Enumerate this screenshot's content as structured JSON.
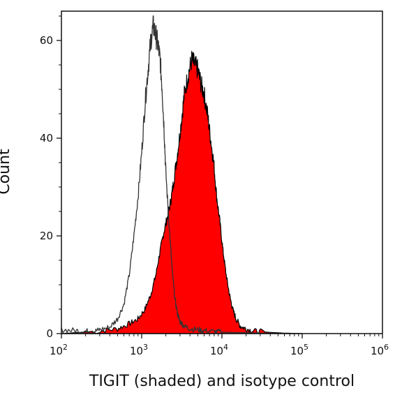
{
  "chart_data": {
    "type": "area",
    "title": "",
    "xlabel": "TIGIT (shaded) and isotype control",
    "ylabel": "Count",
    "x_scale": "log",
    "xlim": [
      100,
      1000000
    ],
    "ylim": [
      0,
      66
    ],
    "x_ticks": [
      {
        "value": 100,
        "base": "10",
        "exp": "2"
      },
      {
        "value": 1000,
        "base": "10",
        "exp": "3"
      },
      {
        "value": 10000,
        "base": "10",
        "exp": "4"
      },
      {
        "value": 100000,
        "base": "10",
        "exp": "5"
      },
      {
        "value": 1000000,
        "base": "10",
        "exp": "6"
      }
    ],
    "y_ticks": [
      {
        "value": 0,
        "label": "0"
      },
      {
        "value": 20,
        "label": "20"
      },
      {
        "value": 40,
        "label": "40"
      },
      {
        "value": 60,
        "label": "60"
      }
    ],
    "grid": false,
    "legend": "none",
    "series": [
      {
        "style": "filled",
        "color": "#ff0000",
        "outline": "#000000",
        "x": [
          100,
          300,
          500,
          700,
          900,
          1100,
          1300,
          1500,
          1700,
          1900,
          2100,
          2300,
          2500,
          2800,
          3100,
          3400,
          3800,
          4200,
          4600,
          5000,
          5500,
          6000,
          6600,
          7200,
          7900,
          8600,
          9400,
          10300,
          11300,
          12400,
          13600,
          15000,
          17000,
          20000,
          25000,
          35000,
          60000,
          100000
        ],
        "y": [
          0,
          0.5,
          1,
          2,
          3,
          5,
          8,
          12,
          17,
          21,
          24,
          27,
          31,
          37,
          43,
          49,
          53,
          56,
          55,
          54,
          51,
          49,
          45,
          40,
          35,
          28,
          23,
          17,
          12,
          8,
          5,
          3,
          1.5,
          1,
          0.5,
          0.3,
          0.1,
          0
        ]
      },
      {
        "style": "line",
        "color": "#333333",
        "x": [
          100,
          150,
          200,
          250,
          300,
          400,
          500,
          600,
          700,
          800,
          900,
          1000,
          1100,
          1200,
          1300,
          1400,
          1500,
          1600,
          1700,
          1800,
          1900,
          2000,
          2200,
          2400,
          2600,
          2800,
          3000,
          3400,
          4000,
          5000,
          6000,
          8000,
          10000,
          15000,
          30000,
          100000
        ],
        "y": [
          0.8,
          0.6,
          0.5,
          0.4,
          0.8,
          1.3,
          3,
          6,
          12,
          20,
          28,
          37,
          47,
          54,
          60,
          63,
          61,
          59,
          56,
          50,
          42,
          33,
          22,
          13,
          7,
          4,
          2.5,
          1.5,
          1,
          0.8,
          0.6,
          0.4,
          0.3,
          0.2,
          0.1,
          0
        ]
      }
    ]
  }
}
